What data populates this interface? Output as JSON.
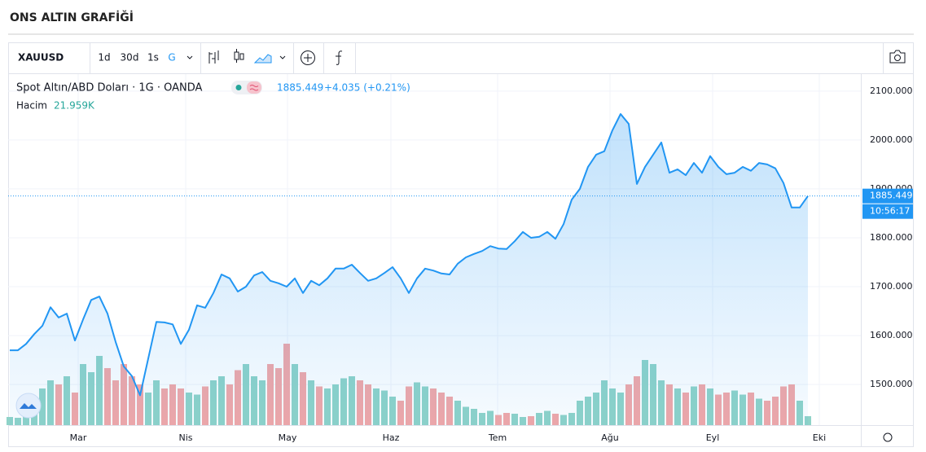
{
  "header": {
    "title": "ONS ALTIN GRAFİĞİ"
  },
  "toolbar": {
    "symbol": "XAUUSD",
    "intervals": [
      "1d",
      "30d",
      "1s",
      "G"
    ]
  },
  "legend": {
    "series_label": "Spot Altın/ABD Doları · 1G · OANDA",
    "change": "+4.035 (+0.21%)",
    "volume_label": "Hacim",
    "last_volume_label": "21.959K",
    "time": "10:56:17"
  },
  "chart_data": {
    "type": "area",
    "color": "#2196f3",
    "up_color": "#8fd3c8",
    "down_color": "#f3a7a7",
    "values": [
      1570,
      1570,
      1583,
      1603,
      1620,
      1658,
      1637,
      1645,
      1590,
      1633,
      1673,
      1680,
      1645,
      1587,
      1537,
      1517,
      1478,
      1553,
      1628,
      1627,
      1623,
      1583,
      1612,
      1662,
      1657,
      1687,
      1725,
      1717,
      1690,
      1700,
      1723,
      1730,
      1712,
      1707,
      1700,
      1717,
      1687,
      1712,
      1703,
      1717,
      1737,
      1737,
      1745,
      1728,
      1712,
      1717,
      1728,
      1740,
      1717,
      1687,
      1717,
      1737,
      1733,
      1727,
      1725,
      1747,
      1760,
      1767,
      1773,
      1783,
      1778,
      1777,
      1793,
      1812,
      1800,
      1802,
      1812,
      1798,
      1828,
      1878,
      1900,
      1945,
      1970,
      1977,
      2020,
      2053,
      2033,
      1910,
      1945,
      1970,
      1995,
      1933,
      1940,
      1928,
      1953,
      1933,
      1967,
      1945,
      1930,
      1933,
      1945,
      1937,
      1953,
      1950,
      1942,
      1912,
      1862,
      1862,
      1885.449
    ],
    "volumes": [
      20,
      18,
      30,
      50,
      90,
      110,
      100,
      120,
      80,
      150,
      130,
      170,
      140,
      110,
      150,
      120,
      100,
      80,
      110,
      90,
      100,
      90,
      80,
      75,
      95,
      110,
      120,
      100,
      135,
      150,
      120,
      110,
      150,
      140,
      200,
      150,
      130,
      110,
      95,
      90,
      100,
      115,
      120,
      110,
      100,
      90,
      85,
      70,
      60,
      95,
      105,
      95,
      90,
      80,
      70,
      60,
      45,
      40,
      30,
      35,
      25,
      30,
      28,
      20,
      22,
      30,
      35,
      28,
      25,
      30,
      60,
      70,
      80,
      110,
      90,
      80,
      100,
      120,
      160,
      150,
      110,
      100,
      90,
      80,
      95,
      100,
      90,
      75,
      80,
      85,
      75,
      80,
      65,
      60,
      70,
      95,
      100,
      60,
      21.959
    ],
    "xlim": [
      0,
      104.4
    ],
    "xticks": [
      {
        "value": 8.4,
        "label": "Mar"
      },
      {
        "value": 21.6,
        "label": "Nis"
      },
      {
        "value": 34.1,
        "label": "May"
      },
      {
        "value": 46.8,
        "label": "Haz"
      },
      {
        "value": 59.9,
        "label": "Tem"
      },
      {
        "value": 73.7,
        "label": "Ağu"
      },
      {
        "value": 86.3,
        "label": "Eyl"
      },
      {
        "value": 99.4,
        "label": "Eki"
      }
    ],
    "ylim": [
      1417,
      2133
    ],
    "yticks": [
      {
        "value": 1500,
        "label": "1500.000"
      },
      {
        "value": 1600,
        "label": "1600.000"
      },
      {
        "value": 1700,
        "label": "1700.000"
      },
      {
        "value": 1800,
        "label": "1800.000"
      },
      {
        "value": 1900,
        "label": "1900.000"
      },
      {
        "value": 2000,
        "label": "2000.000"
      },
      {
        "value": 2100,
        "label": "2100.000"
      }
    ],
    "vlim": [
      0,
      860
    ],
    "grid": true
  }
}
